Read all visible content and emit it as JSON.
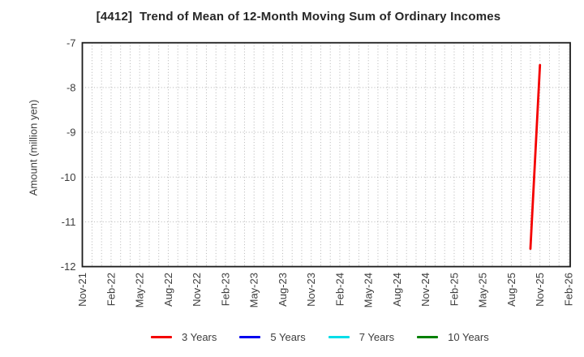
{
  "chart_data": {
    "type": "line",
    "title": "[4412]  Trend of Mean of 12-Month Moving Sum of Ordinary Incomes",
    "xlabel": "",
    "ylabel": "Amount (million yen)",
    "ylim": [
      -12,
      -7
    ],
    "y_ticks": [
      -7,
      -8,
      -9,
      -10,
      -11,
      -12
    ],
    "x_tick_labels": [
      "Nov-21",
      "Feb-22",
      "May-22",
      "Aug-22",
      "Nov-22",
      "Feb-23",
      "May-23",
      "Aug-23",
      "Nov-23",
      "Feb-24",
      "May-24",
      "Aug-24",
      "Nov-24",
      "Feb-25",
      "May-25",
      "Aug-25",
      "Nov-25",
      "Feb-26"
    ],
    "x_tick_step_months": 3,
    "x_axis_start": "Nov-21",
    "x_axis_total_months": 51,
    "grid": {
      "vertical": "dotted, every month",
      "horizontal": "dotted, every 1 unit"
    },
    "legend_position": "bottom",
    "axis_color": "#1c1c1c",
    "grid_color": "#b3b3b3",
    "series": [
      {
        "name": "3 Years",
        "color": "#f40000",
        "points": [
          {
            "month": "Oct-25",
            "value": -11.6
          },
          {
            "month": "Nov-25",
            "value": -7.5
          }
        ]
      },
      {
        "name": "5 Years",
        "color": "#0000ee",
        "points": []
      },
      {
        "name": "7 Years",
        "color": "#00dde8",
        "points": []
      },
      {
        "name": "10 Years",
        "color": "#008000",
        "points": []
      }
    ]
  }
}
